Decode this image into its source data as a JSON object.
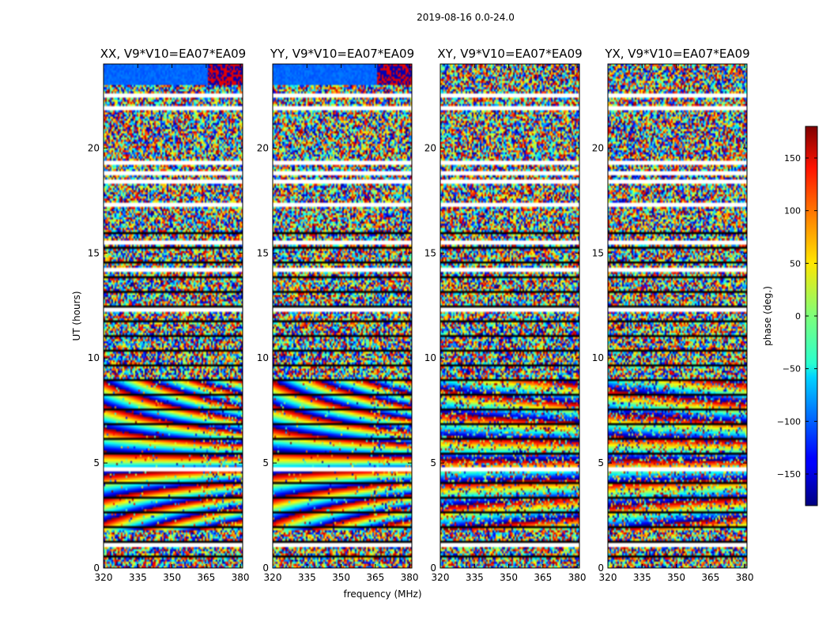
{
  "chart_data": {
    "type": "heatmap",
    "suptitle": "2019-08-16 0.0-24.0",
    "xlabel": "frequency (MHz)",
    "ylabel": "UT (hours)",
    "xlim": [
      320,
      381
    ],
    "ylim": [
      0,
      24
    ],
    "xticks": [
      "320",
      "335",
      "350",
      "365",
      "380"
    ],
    "yticks": [
      "0",
      "5",
      "10",
      "15",
      "20"
    ],
    "panels": [
      {
        "title": "XX, V9*V10=EA07*EA09",
        "polarization": "XX"
      },
      {
        "title": "YY, V9*V10=EA07*EA09",
        "polarization": "YY"
      },
      {
        "title": "XY, V9*V10=EA07*EA09",
        "polarization": "XY"
      },
      {
        "title": "YX, V9*V10=EA07*EA09",
        "polarization": "YX"
      }
    ],
    "colorbar": {
      "label": "phase (deg.)",
      "range": [
        -180,
        180
      ],
      "ticks": [
        "150",
        "100",
        "50",
        "0",
        "−50",
        "−100",
        "−150"
      ],
      "tick_values": [
        150,
        100,
        50,
        0,
        -50,
        -100,
        -150
      ],
      "colormap": "jet"
    },
    "flagged_gaps_hours": [
      1.1,
      4.7,
      12.3,
      14.2,
      15.5,
      17.3,
      18.4,
      18.8,
      19.3,
      21.9,
      22.5
    ],
    "coherent_phase_wrap_hours": [
      [
        1.8,
        9.0
      ]
    ],
    "noise_dominated_hours": [
      [
        9.0,
        24.0
      ]
    ]
  }
}
